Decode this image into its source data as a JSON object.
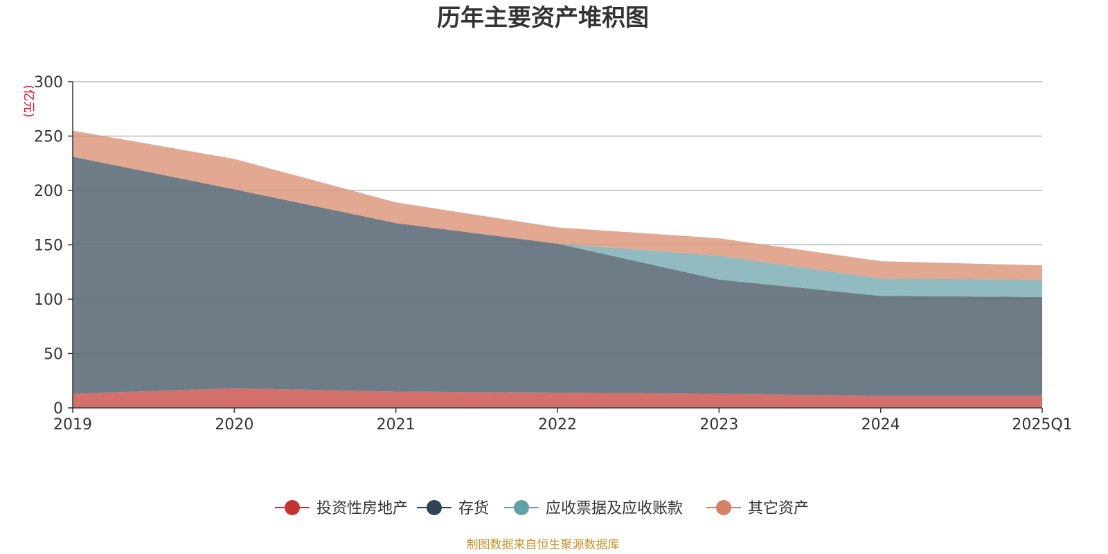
{
  "chart_data": {
    "type": "area",
    "stacked": true,
    "title": "历年主要资产堆积图",
    "unit_label": "(亿元)",
    "categories": [
      "2019",
      "2020",
      "2021",
      "2022",
      "2023",
      "2024",
      "2025Q1"
    ],
    "ylim": [
      0,
      300
    ],
    "yticks": [
      "0",
      "50",
      "100",
      "150",
      "200",
      "250",
      "300"
    ],
    "grid": true,
    "legend_position": "bottom-center",
    "series": [
      {
        "name": "投资性房地产",
        "color": "#c23531",
        "fill": "#d4706b",
        "values": [
          13,
          18,
          15,
          14,
          13,
          11,
          11
        ]
      },
      {
        "name": "存货",
        "color": "#2f4554",
        "fill": "#6e7c87",
        "values": [
          218,
          183,
          155,
          137,
          105,
          92,
          91
        ]
      },
      {
        "name": "应收票据及应收账款",
        "color": "#61a0a8",
        "fill": "#91bbc1",
        "values": [
          0,
          0,
          0,
          0,
          22,
          16,
          16
        ]
      },
      {
        "name": "其它资产",
        "color": "#d48265",
        "fill": "#e2a891",
        "values": [
          24,
          28,
          19,
          15,
          16,
          16,
          13
        ]
      }
    ],
    "source_note": "制图数据来自恒生聚源数据库"
  }
}
